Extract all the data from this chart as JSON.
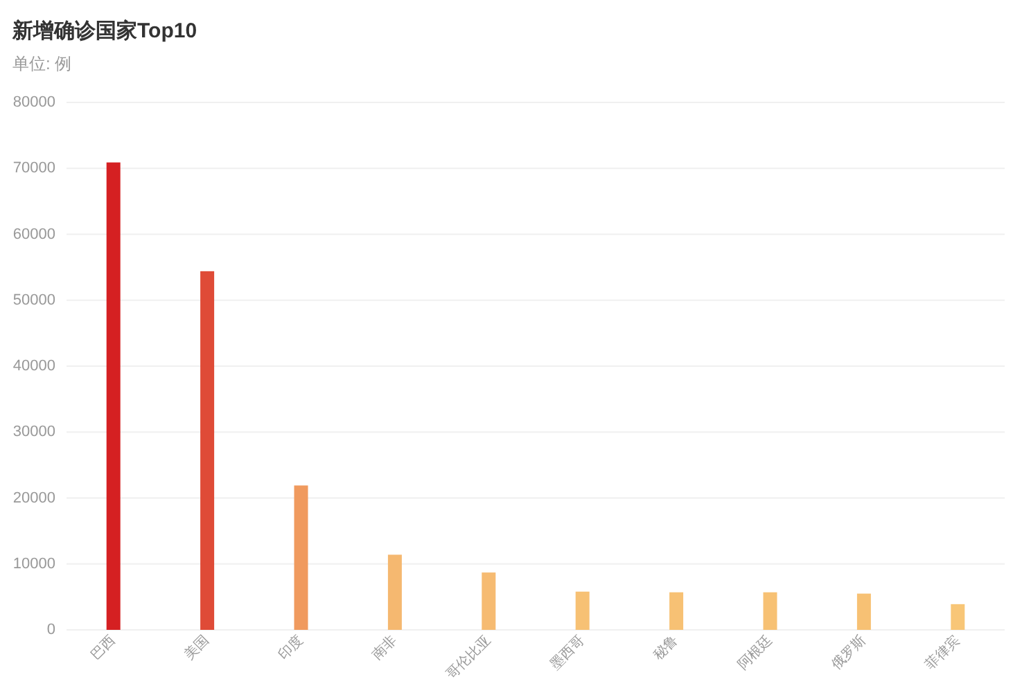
{
  "chart_data": {
    "type": "bar",
    "title": "新增确诊国家Top10",
    "subtitle": "单位: 例",
    "categories": [
      "巴西",
      "美国",
      "印度",
      "南非",
      "哥伦比亚",
      "墨西哥",
      "秘鲁",
      "阿根廷",
      "俄罗斯",
      "菲律宾"
    ],
    "values": [
      70900,
      54400,
      21900,
      11400,
      8700,
      5800,
      5700,
      5700,
      5500,
      3900
    ],
    "colors": [
      "#d52022",
      "#df4b37",
      "#f09a5e",
      "#f5b870",
      "#f6bb72",
      "#f7c174",
      "#f7c174",
      "#f7c174",
      "#f7c174",
      "#f8c677"
    ],
    "ylim": [
      0,
      80000
    ],
    "yticks": [
      0,
      10000,
      20000,
      30000,
      40000,
      50000,
      60000,
      70000,
      80000
    ],
    "grid": "y"
  }
}
